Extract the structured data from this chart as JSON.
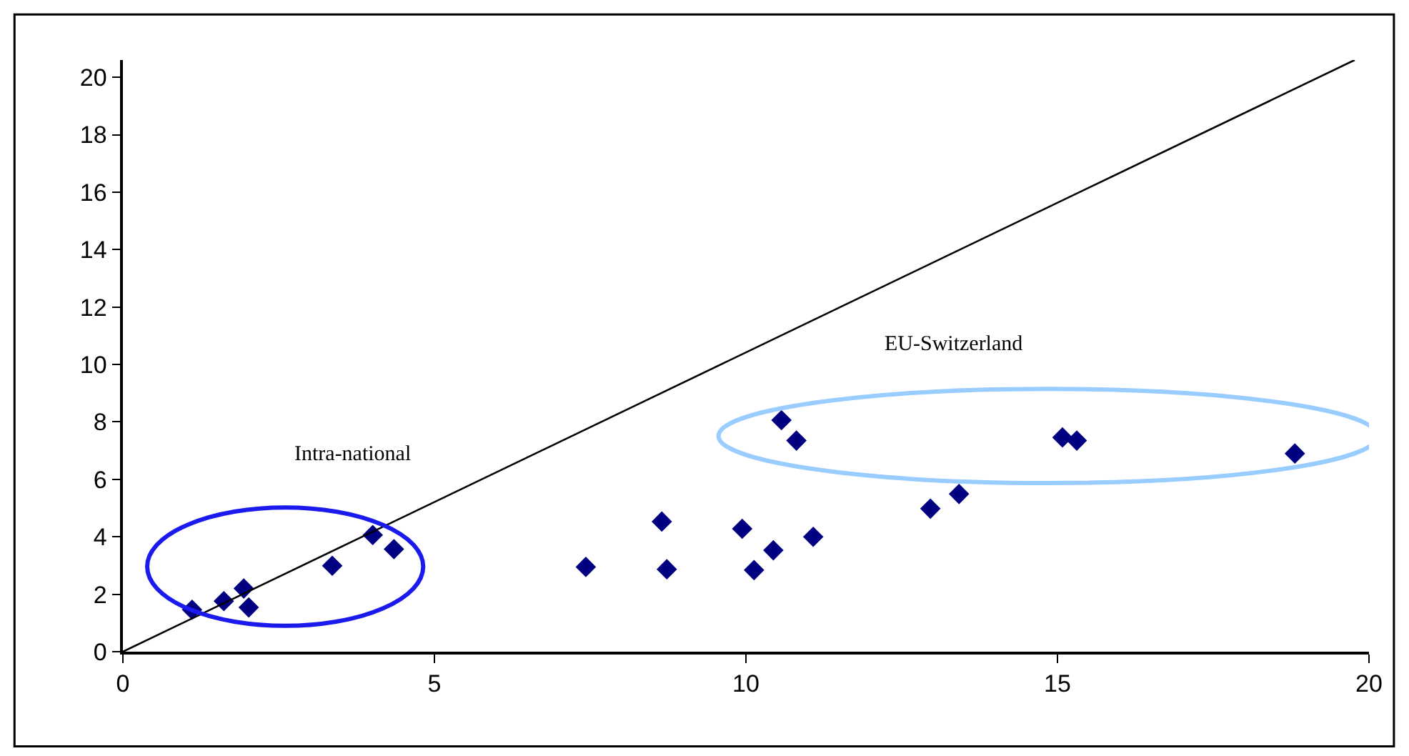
{
  "chart_data": {
    "type": "scatter",
    "marker": "diamond",
    "xlim": [
      0,
      20
    ],
    "xticks": [
      0,
      5,
      10,
      15,
      20
    ],
    "ylim": [
      0,
      20.6
    ],
    "yticks": [
      0,
      2,
      4,
      6,
      8,
      10,
      12,
      14,
      16,
      18,
      20
    ],
    "series": [
      {
        "color": "#000080",
        "x": [
          1.11,
          1.62,
          1.94,
          2.02,
          3.36,
          4.01,
          4.35,
          7.43,
          8.65,
          8.73,
          9.94,
          10.13,
          10.44,
          11.08,
          12.96,
          13.42,
          10.57,
          10.81,
          15.08,
          15.31,
          18.81
        ],
        "values": [
          1.46,
          1.76,
          2.2,
          1.54,
          2.99,
          4.06,
          3.57,
          2.95,
          4.53,
          2.87,
          4.28,
          2.84,
          3.53,
          4.0,
          4.98,
          5.49,
          8.06,
          7.35,
          7.46,
          7.35,
          6.9
        ]
      },
      {
        "type": "line",
        "marker": "none",
        "color": "#000000",
        "x": [
          0,
          19.77
        ],
        "values": [
          0,
          20.6
        ]
      }
    ],
    "annotations": [
      "Intra-national",
      "EU-Switzerland"
    ]
  }
}
